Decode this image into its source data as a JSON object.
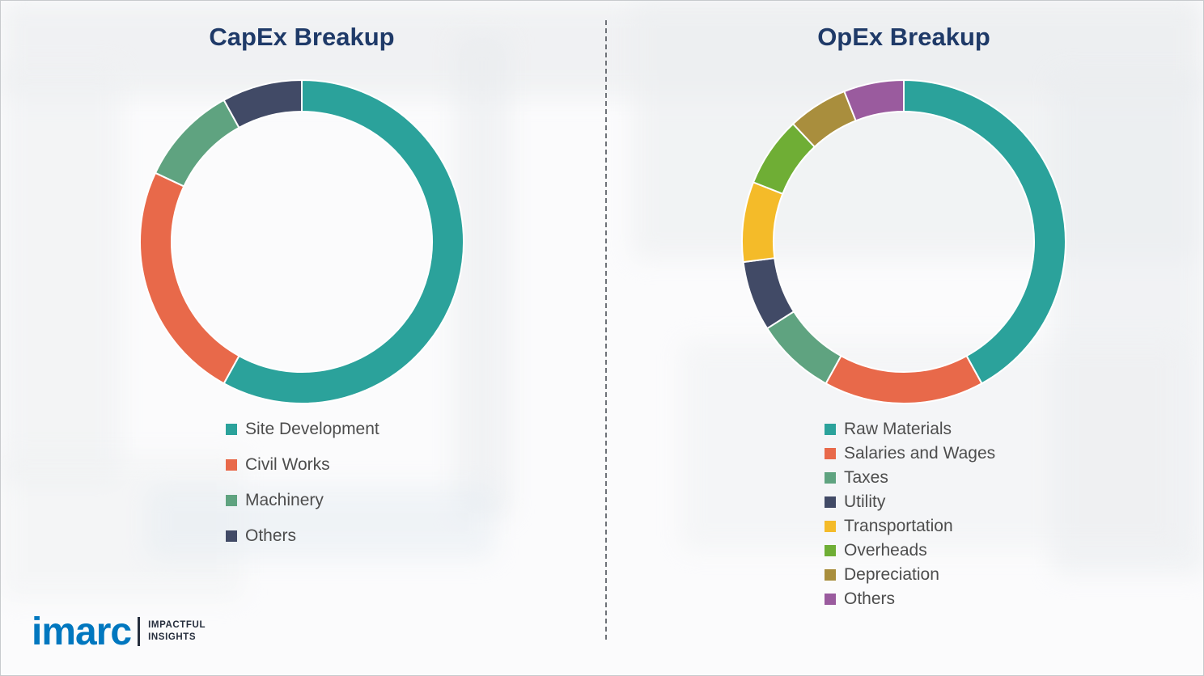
{
  "chart_data": [
    {
      "type": "pie",
      "subtype": "donut",
      "title": "CapEx Breakup",
      "labels": [
        "Site Development",
        "Civil Works",
        "Machinery",
        "Others"
      ],
      "values": [
        58,
        24,
        10,
        8
      ],
      "colors": [
        "#2BA29B",
        "#E8694A",
        "#5FA380",
        "#414A66"
      ],
      "legend_position": "below-left",
      "start_angle_deg": 0,
      "direction": "clockwise"
    },
    {
      "type": "pie",
      "subtype": "donut",
      "title": "OpEx Breakup",
      "labels": [
        "Raw Materials",
        "Salaries and Wages",
        "Taxes",
        "Utility",
        "Transportation",
        "Overheads",
        "Depreciation",
        "Others"
      ],
      "values": [
        42,
        16,
        8,
        7,
        8,
        7,
        6,
        6
      ],
      "colors": [
        "#2BA29B",
        "#E8694A",
        "#5FA380",
        "#414A66",
        "#F4BB29",
        "#6FAE35",
        "#A98E3D",
        "#9A5B9E"
      ],
      "legend_position": "below-left",
      "start_angle_deg": 0,
      "direction": "clockwise"
    }
  ],
  "logo": {
    "brand": "imarc",
    "tagline_line1": "IMPACTFUL",
    "tagline_line2": "INSIGHTS"
  }
}
